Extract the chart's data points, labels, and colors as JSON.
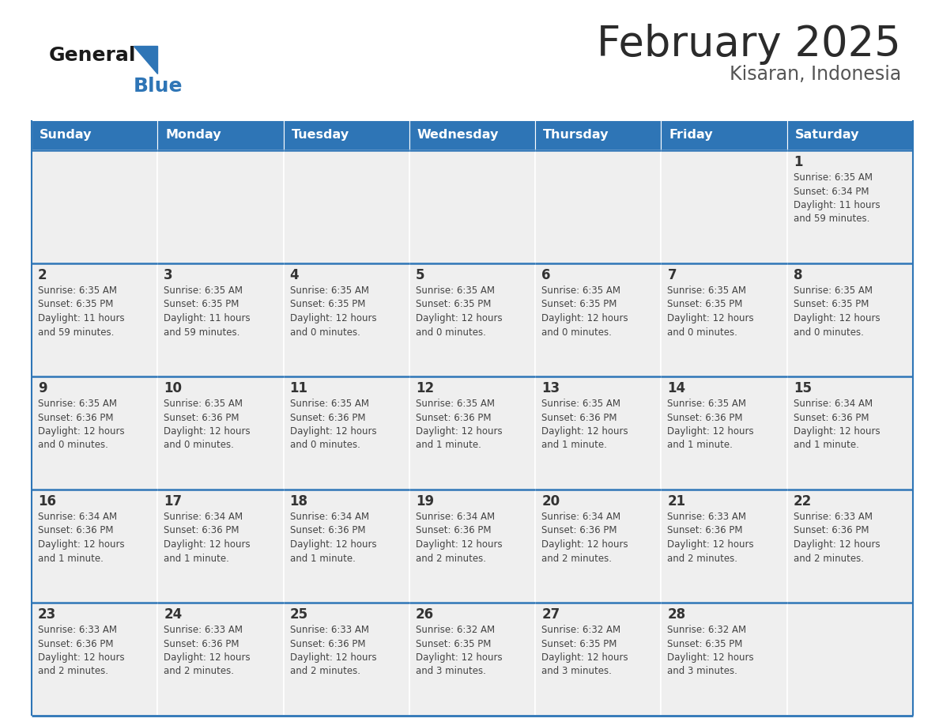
{
  "title": "February 2025",
  "subtitle": "Kisaran, Indonesia",
  "days_of_week": [
    "Sunday",
    "Monday",
    "Tuesday",
    "Wednesday",
    "Thursday",
    "Friday",
    "Saturday"
  ],
  "header_bg": "#2E75B6",
  "header_text": "#FFFFFF",
  "cell_bg": "#EFEFEF",
  "cell_text": "#333333",
  "separator_color": "#2E75B6",
  "logo_general_color": "#1a1a1a",
  "logo_blue_color": "#2E75B6",
  "calendar": [
    [
      null,
      null,
      null,
      null,
      null,
      null,
      {
        "day": 1,
        "sunrise": "6:35 AM",
        "sunset": "6:34 PM",
        "daylight": "11 hours and 59 minutes."
      }
    ],
    [
      {
        "day": 2,
        "sunrise": "6:35 AM",
        "sunset": "6:35 PM",
        "daylight": "11 hours and 59 minutes."
      },
      {
        "day": 3,
        "sunrise": "6:35 AM",
        "sunset": "6:35 PM",
        "daylight": "11 hours and 59 minutes."
      },
      {
        "day": 4,
        "sunrise": "6:35 AM",
        "sunset": "6:35 PM",
        "daylight": "12 hours and 0 minutes."
      },
      {
        "day": 5,
        "sunrise": "6:35 AM",
        "sunset": "6:35 PM",
        "daylight": "12 hours and 0 minutes."
      },
      {
        "day": 6,
        "sunrise": "6:35 AM",
        "sunset": "6:35 PM",
        "daylight": "12 hours and 0 minutes."
      },
      {
        "day": 7,
        "sunrise": "6:35 AM",
        "sunset": "6:35 PM",
        "daylight": "12 hours and 0 minutes."
      },
      {
        "day": 8,
        "sunrise": "6:35 AM",
        "sunset": "6:35 PM",
        "daylight": "12 hours and 0 minutes."
      }
    ],
    [
      {
        "day": 9,
        "sunrise": "6:35 AM",
        "sunset": "6:36 PM",
        "daylight": "12 hours and 0 minutes."
      },
      {
        "day": 10,
        "sunrise": "6:35 AM",
        "sunset": "6:36 PM",
        "daylight": "12 hours and 0 minutes."
      },
      {
        "day": 11,
        "sunrise": "6:35 AM",
        "sunset": "6:36 PM",
        "daylight": "12 hours and 0 minutes."
      },
      {
        "day": 12,
        "sunrise": "6:35 AM",
        "sunset": "6:36 PM",
        "daylight": "12 hours and 1 minute."
      },
      {
        "day": 13,
        "sunrise": "6:35 AM",
        "sunset": "6:36 PM",
        "daylight": "12 hours and 1 minute."
      },
      {
        "day": 14,
        "sunrise": "6:35 AM",
        "sunset": "6:36 PM",
        "daylight": "12 hours and 1 minute."
      },
      {
        "day": 15,
        "sunrise": "6:34 AM",
        "sunset": "6:36 PM",
        "daylight": "12 hours and 1 minute."
      }
    ],
    [
      {
        "day": 16,
        "sunrise": "6:34 AM",
        "sunset": "6:36 PM",
        "daylight": "12 hours and 1 minute."
      },
      {
        "day": 17,
        "sunrise": "6:34 AM",
        "sunset": "6:36 PM",
        "daylight": "12 hours and 1 minute."
      },
      {
        "day": 18,
        "sunrise": "6:34 AM",
        "sunset": "6:36 PM",
        "daylight": "12 hours and 1 minute."
      },
      {
        "day": 19,
        "sunrise": "6:34 AM",
        "sunset": "6:36 PM",
        "daylight": "12 hours and 2 minutes."
      },
      {
        "day": 20,
        "sunrise": "6:34 AM",
        "sunset": "6:36 PM",
        "daylight": "12 hours and 2 minutes."
      },
      {
        "day": 21,
        "sunrise": "6:33 AM",
        "sunset": "6:36 PM",
        "daylight": "12 hours and 2 minutes."
      },
      {
        "day": 22,
        "sunrise": "6:33 AM",
        "sunset": "6:36 PM",
        "daylight": "12 hours and 2 minutes."
      }
    ],
    [
      {
        "day": 23,
        "sunrise": "6:33 AM",
        "sunset": "6:36 PM",
        "daylight": "12 hours and 2 minutes."
      },
      {
        "day": 24,
        "sunrise": "6:33 AM",
        "sunset": "6:36 PM",
        "daylight": "12 hours and 2 minutes."
      },
      {
        "day": 25,
        "sunrise": "6:33 AM",
        "sunset": "6:36 PM",
        "daylight": "12 hours and 2 minutes."
      },
      {
        "day": 26,
        "sunrise": "6:32 AM",
        "sunset": "6:35 PM",
        "daylight": "12 hours and 3 minutes."
      },
      {
        "day": 27,
        "sunrise": "6:32 AM",
        "sunset": "6:35 PM",
        "daylight": "12 hours and 3 minutes."
      },
      {
        "day": 28,
        "sunrise": "6:32 AM",
        "sunset": "6:35 PM",
        "daylight": "12 hours and 3 minutes."
      },
      null
    ]
  ]
}
